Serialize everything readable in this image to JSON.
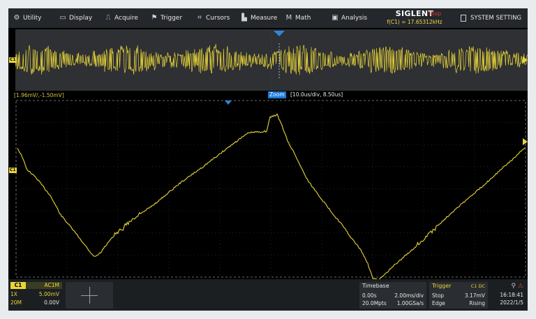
{
  "menu": {
    "items": [
      {
        "label": "Utility",
        "icon": "gear-icon",
        "glyph": "⚙"
      },
      {
        "label": "Display",
        "icon": "monitor-icon",
        "glyph": "▭"
      },
      {
        "label": "Acquire",
        "icon": "acquire-icon",
        "glyph": "⎍"
      },
      {
        "label": "Trigger",
        "icon": "trigger-icon",
        "glyph": "⚑"
      },
      {
        "label": "Cursors",
        "icon": "cursors-icon",
        "glyph": "⌗"
      },
      {
        "label": "Measure",
        "icon": "measure-icon",
        "glyph": "▙"
      },
      {
        "label": "Math",
        "icon": "math-icon",
        "glyph": "M"
      },
      {
        "label": "Analysis",
        "icon": "analysis-icon",
        "glyph": "▣"
      }
    ],
    "brand": "SIGLENT",
    "run_state": "Stop",
    "frequency": "f(C1) = 17.65312kHz",
    "system_setting": "SYSTEM SETTING",
    "system_icon": "document-icon"
  },
  "zoom": {
    "range": "[1.96mV/,-1.50mV]",
    "label": "Zoom",
    "info": "[10.0us/div, 8.50us]"
  },
  "channel_markers": {
    "overview": "C1",
    "zoom": "C1"
  },
  "colors": {
    "trace": "#e8d53a",
    "accent": "#1a78d8",
    "stop": "#e03a2c"
  },
  "status": {
    "ch1": {
      "name": "C1",
      "coupling": "AC1M",
      "probe": "1X",
      "scale": "5.00mV",
      "bw": "20M",
      "offset": "0.00V"
    },
    "timebase": {
      "title": "Timebase",
      "delay": "0.00s",
      "scale": "2.00ms/div",
      "memory": "20.0Mpts",
      "rate": "1.00GSa/s"
    },
    "trigger": {
      "title": "Trigger",
      "source": "C1 DC",
      "state": "Stop",
      "level": "3.17mV",
      "type": "Edge",
      "slope": "Rising"
    },
    "clock": {
      "time": "16:18:41",
      "date": "2022/1/5",
      "icons": "usb-icon lan-icon"
    }
  }
}
